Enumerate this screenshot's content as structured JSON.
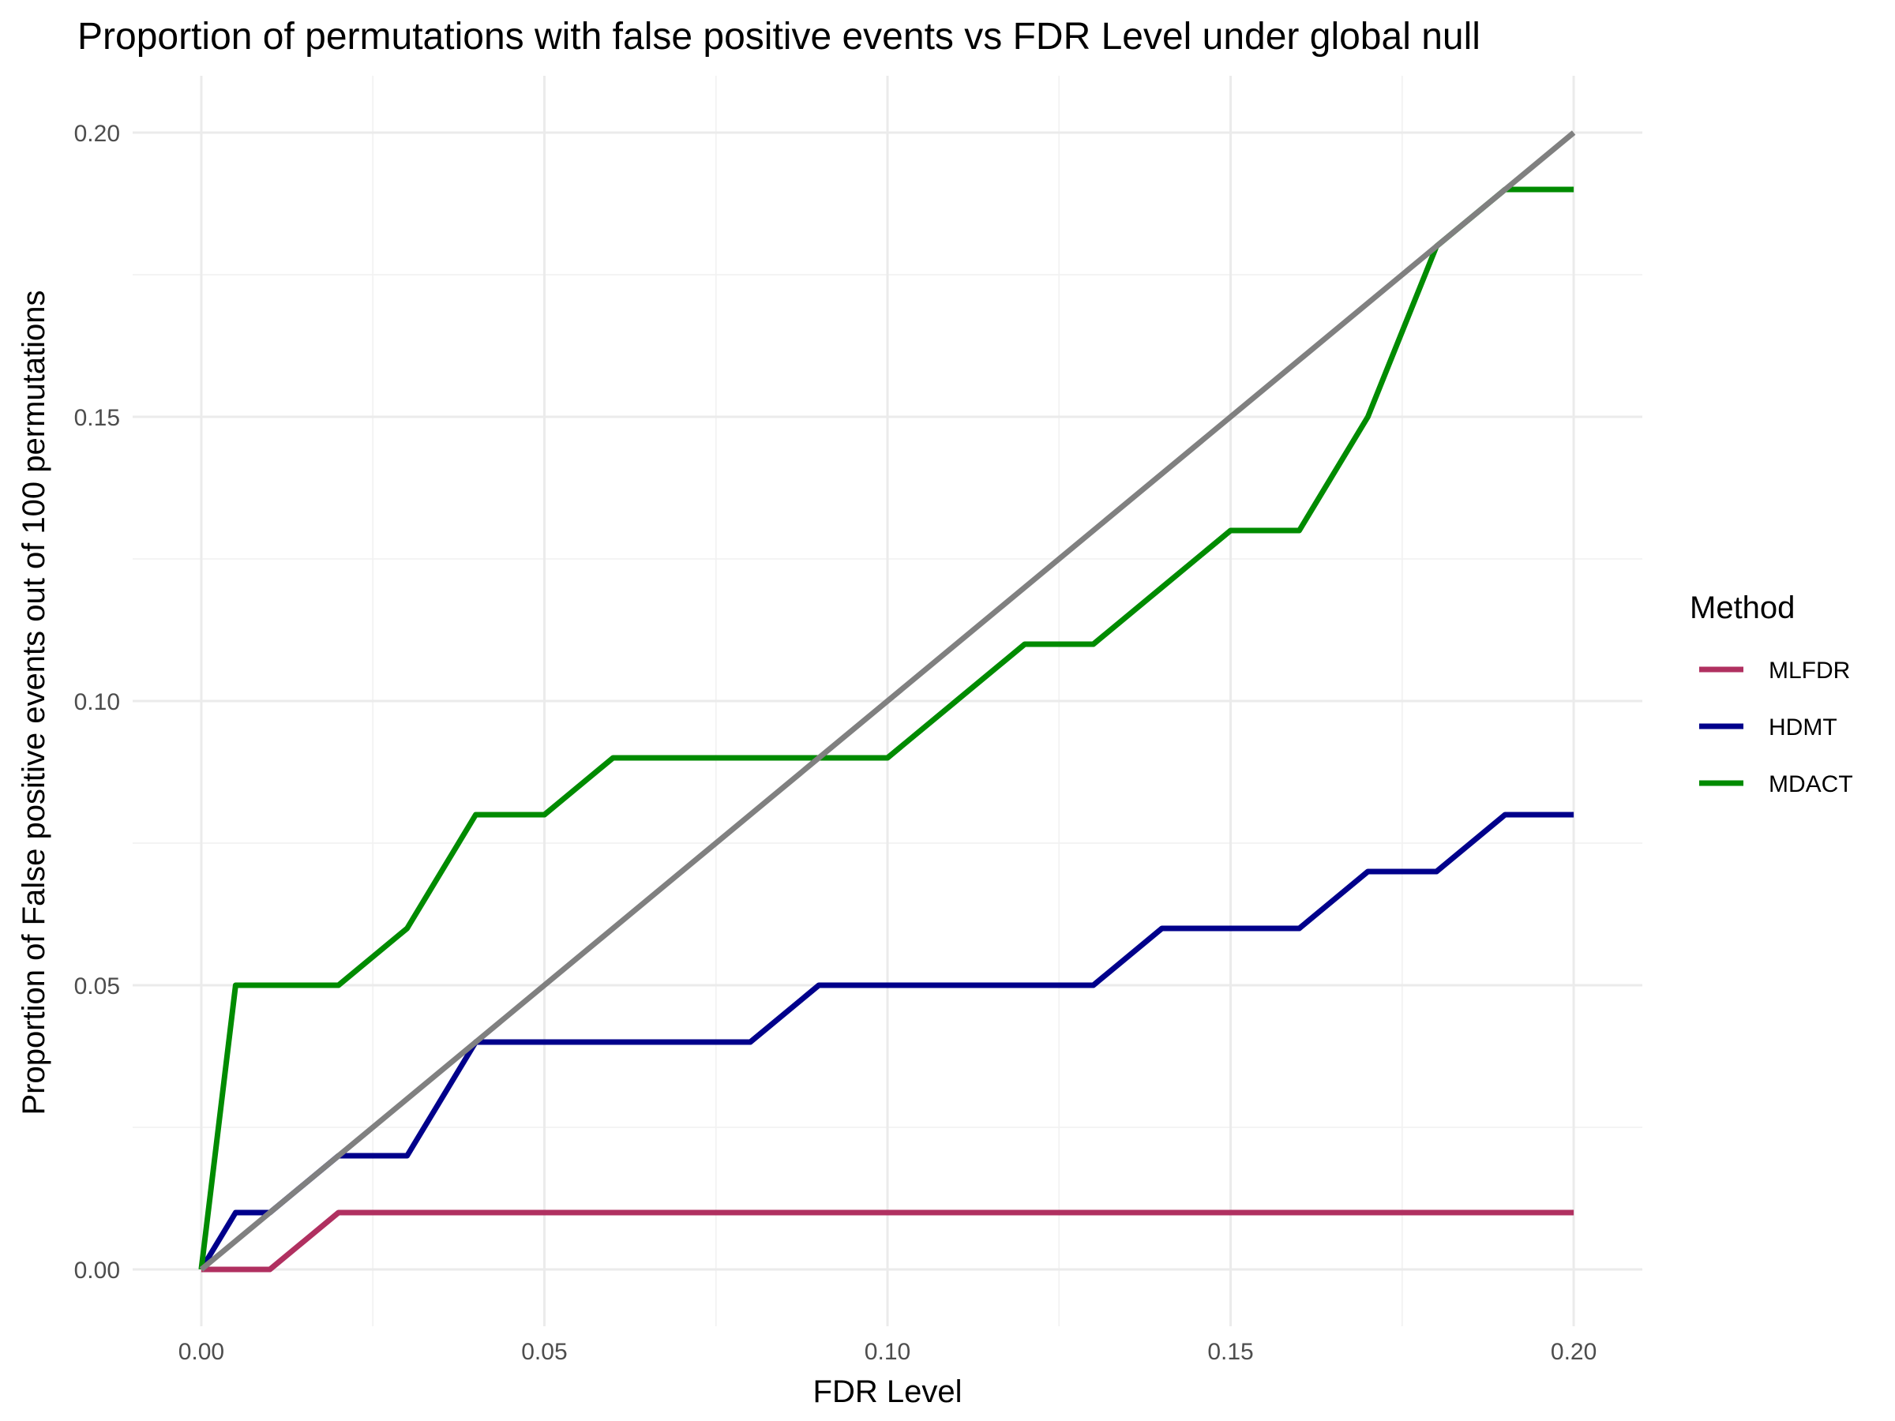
{
  "chart_data": {
    "type": "line",
    "title": "Proportion of permutations with false positive events vs FDR Level under global null",
    "xlabel": "FDR Level",
    "ylabel": "Proportion of False positive events out of 100 permutations",
    "xlim": [
      -0.01,
      0.21
    ],
    "ylim": [
      -0.01,
      0.21
    ],
    "x_ticks": [
      0.0,
      0.05,
      0.1,
      0.15,
      0.2
    ],
    "x_tick_labels": [
      "0.00",
      "0.05",
      "0.10",
      "0.15",
      "0.20"
    ],
    "y_ticks": [
      0.0,
      0.05,
      0.1,
      0.15,
      0.2
    ],
    "y_tick_labels": [
      "0.00",
      "0.05",
      "0.10",
      "0.15",
      "0.20"
    ],
    "grid": true,
    "legend": {
      "title": "Method",
      "placement": "right"
    },
    "series": [
      {
        "name": "MLFDR",
        "color": "#b03060",
        "x": [
          0.0,
          0.005,
          0.01,
          0.02,
          0.03,
          0.04,
          0.05,
          0.06,
          0.07,
          0.08,
          0.09,
          0.1,
          0.11,
          0.12,
          0.13,
          0.14,
          0.15,
          0.16,
          0.17,
          0.18,
          0.19,
          0.2
        ],
        "y": [
          0.0,
          0.0,
          0.0,
          0.01,
          0.01,
          0.01,
          0.01,
          0.01,
          0.01,
          0.01,
          0.01,
          0.01,
          0.01,
          0.01,
          0.01,
          0.01,
          0.01,
          0.01,
          0.01,
          0.01,
          0.01,
          0.01
        ]
      },
      {
        "name": "HDMT",
        "color": "#00008b",
        "x": [
          0.0,
          0.005,
          0.01,
          0.02,
          0.03,
          0.04,
          0.05,
          0.06,
          0.07,
          0.08,
          0.09,
          0.1,
          0.11,
          0.12,
          0.13,
          0.14,
          0.15,
          0.16,
          0.17,
          0.18,
          0.19,
          0.2
        ],
        "y": [
          0.0,
          0.01,
          0.01,
          0.02,
          0.02,
          0.04,
          0.04,
          0.04,
          0.04,
          0.04,
          0.05,
          0.05,
          0.05,
          0.05,
          0.05,
          0.06,
          0.06,
          0.06,
          0.07,
          0.07,
          0.08,
          0.08
        ]
      },
      {
        "name": "MDACT",
        "color": "#008b00",
        "x": [
          0.0,
          0.005,
          0.01,
          0.02,
          0.03,
          0.04,
          0.05,
          0.06,
          0.07,
          0.08,
          0.09,
          0.1,
          0.11,
          0.12,
          0.13,
          0.14,
          0.15,
          0.16,
          0.17,
          0.18,
          0.19,
          0.2
        ],
        "y": [
          0.0,
          0.05,
          0.05,
          0.05,
          0.06,
          0.08,
          0.08,
          0.09,
          0.09,
          0.09,
          0.09,
          0.09,
          0.1,
          0.11,
          0.11,
          0.12,
          0.13,
          0.13,
          0.15,
          0.18,
          0.19,
          0.19
        ]
      }
    ],
    "reference_line": {
      "color": "#808080",
      "x": [
        0.0,
        0.2
      ],
      "y": [
        0.0,
        0.2
      ]
    }
  }
}
